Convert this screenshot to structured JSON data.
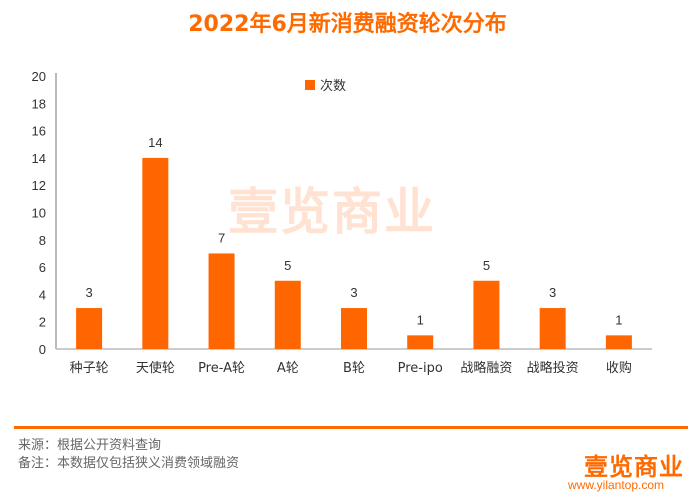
{
  "chart_data": {
    "type": "bar",
    "title": "2022年6月新消费融资轮次分布",
    "categories": [
      "种子轮",
      "天使轮",
      "Pre-A轮",
      "A轮",
      "B轮",
      "Pre-ipo",
      "战略融资",
      "战略投资",
      "收购"
    ],
    "series": [
      {
        "name": "次数",
        "values": [
          3,
          14,
          7,
          5,
          3,
          1,
          5,
          3,
          1
        ],
        "color": "#ff6600"
      }
    ],
    "ylim": [
      0,
      20
    ],
    "yticks": [
      0,
      2,
      4,
      6,
      8,
      10,
      12,
      14,
      16,
      18,
      20
    ],
    "grid": false,
    "legend": "top-right",
    "data_labels": true
  },
  "watermark": "壹览商业",
  "footer": {
    "source": "来源：根据公开资料查询",
    "note": "备注：本数据仅包括狭义消费领域融资",
    "logo": "壹览商业",
    "site": "www.yilantop.com"
  },
  "colors": {
    "accent": "#ff6a00",
    "bar": "#ff6600"
  }
}
